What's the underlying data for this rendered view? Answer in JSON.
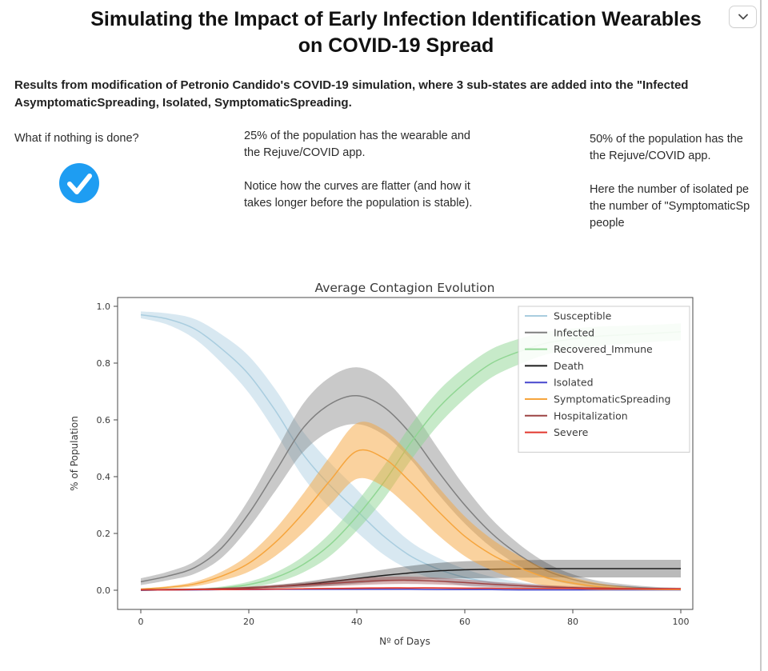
{
  "page": {
    "title_line1": "Simulating the Impact of Early Infection Identification Wearables",
    "title_line2": "on COVID-19 Spread",
    "subtitle_lines": [
      "Results from modification of Petronio Candido's COVID-19 simulation, where 3 sub-states are added into the \"Infected",
      "AsymptomaticSpreading, Isolated, SymptomaticSpreading."
    ]
  },
  "sections": {
    "left": {
      "heading": "What if nothing is done?"
    },
    "middle": {
      "lines": [
        "25% of the population has the wearable and",
        "the Rejuve/COVID app.",
        "",
        "Notice how the curves are flatter (and how it",
        "takes longer before the population is stable)."
      ]
    },
    "right": {
      "lines": [
        "50% of the population has the",
        "the Rejuve/COVID app.",
        "",
        "Here the number of isolated pe",
        "the number of \"SymptomaticSp",
        "people"
      ]
    }
  },
  "icons": {
    "check_circle_color": "#1e9df2",
    "chevron_color": "#4a4a4a"
  },
  "chart_data": {
    "type": "line",
    "title": "Average Contagion Evolution",
    "xlabel": "Nº of Days",
    "ylabel": "% of Population",
    "xlim": [
      0,
      100
    ],
    "ylim": [
      0.0,
      1.0
    ],
    "x_ticks": [
      0,
      20,
      40,
      60,
      80,
      100
    ],
    "y_ticks": [
      0.0,
      0.2,
      0.4,
      0.6,
      0.8,
      1.0
    ],
    "grid": false,
    "legend_position": "upper right",
    "x": [
      0,
      5,
      10,
      15,
      20,
      25,
      30,
      35,
      40,
      45,
      50,
      55,
      60,
      65,
      70,
      75,
      80,
      85,
      90,
      95,
      100
    ],
    "series": [
      {
        "name": "Susceptible",
        "color": "#a9cddf",
        "values": [
          0.97,
          0.955,
          0.92,
          0.85,
          0.76,
          0.63,
          0.48,
          0.37,
          0.28,
          0.19,
          0.12,
          0.075,
          0.045,
          0.027,
          0.016,
          0.01,
          0.006,
          0.004,
          0.003,
          0.002,
          0.002
        ],
        "band": [
          0.012,
          0.02,
          0.035,
          0.05,
          0.065,
          0.075,
          0.08,
          0.08,
          0.075,
          0.065,
          0.05,
          0.04,
          0.03,
          0.02,
          0.013,
          0.008,
          0.005,
          0.004,
          0.003,
          0.002,
          0.002
        ],
        "band_alpha": 0.45
      },
      {
        "name": "Infected",
        "color": "#7f7f7f",
        "values": [
          0.03,
          0.05,
          0.08,
          0.15,
          0.27,
          0.42,
          0.57,
          0.655,
          0.685,
          0.645,
          0.55,
          0.42,
          0.3,
          0.2,
          0.125,
          0.07,
          0.038,
          0.02,
          0.012,
          0.007,
          0.005
        ],
        "band": [
          0.012,
          0.015,
          0.022,
          0.035,
          0.05,
          0.068,
          0.085,
          0.095,
          0.1,
          0.098,
          0.09,
          0.08,
          0.065,
          0.05,
          0.038,
          0.028,
          0.018,
          0.012,
          0.008,
          0.005,
          0.004
        ],
        "band_alpha": 0.42
      },
      {
        "name": "Recovered_Immune",
        "color": "#90d693",
        "values": [
          0,
          0.001,
          0.003,
          0.008,
          0.02,
          0.045,
          0.09,
          0.16,
          0.26,
          0.38,
          0.52,
          0.64,
          0.73,
          0.8,
          0.84,
          0.87,
          0.885,
          0.895,
          0.9,
          0.905,
          0.91
        ],
        "band": [
          0,
          0.001,
          0.002,
          0.005,
          0.01,
          0.018,
          0.028,
          0.04,
          0.05,
          0.058,
          0.062,
          0.06,
          0.055,
          0.05,
          0.045,
          0.04,
          0.037,
          0.034,
          0.032,
          0.03,
          0.03
        ],
        "band_alpha": 0.5
      },
      {
        "name": "Death",
        "color": "#1c1c1c",
        "values": [
          0,
          0.001,
          0.002,
          0.004,
          0.008,
          0.013,
          0.02,
          0.03,
          0.041,
          0.052,
          0.061,
          0.068,
          0.072,
          0.074,
          0.075,
          0.076,
          0.076,
          0.076,
          0.076,
          0.076,
          0.076
        ],
        "band": [
          0,
          0.001,
          0.001,
          0.002,
          0.004,
          0.006,
          0.009,
          0.013,
          0.017,
          0.021,
          0.025,
          0.028,
          0.03,
          0.031,
          0.031,
          0.031,
          0.031,
          0.031,
          0.031,
          0.031,
          0.031
        ],
        "band_alpha": 0.3
      },
      {
        "name": "Isolated",
        "color": "#4646cd",
        "values": [
          0,
          0.001,
          0.001,
          0.002,
          0.002,
          0.003,
          0.003,
          0.003,
          0.003,
          0.003,
          0.003,
          0.002,
          0.002,
          0.002,
          0.001,
          0.001,
          0.001,
          0.001,
          0.001,
          0.001,
          0.001
        ],
        "band": [
          0,
          0.001,
          0.001,
          0.001,
          0.001,
          0.002,
          0.002,
          0.002,
          0.002,
          0.002,
          0.002,
          0.001,
          0.001,
          0.001,
          0.001,
          0.001,
          0.001,
          0.001,
          0.001,
          0.001,
          0.001
        ],
        "band_alpha": 0.35
      },
      {
        "name": "SymptomaticSpreading",
        "color": "#f6a53d",
        "values": [
          0.004,
          0.01,
          0.022,
          0.05,
          0.095,
          0.17,
          0.27,
          0.385,
          0.49,
          0.465,
          0.38,
          0.28,
          0.19,
          0.125,
          0.08,
          0.045,
          0.025,
          0.012,
          0.006,
          0.003,
          0.002
        ],
        "band": [
          0.002,
          0.004,
          0.008,
          0.016,
          0.03,
          0.048,
          0.068,
          0.085,
          0.098,
          0.1,
          0.095,
          0.085,
          0.07,
          0.055,
          0.042,
          0.03,
          0.02,
          0.012,
          0.006,
          0.003,
          0.002
        ],
        "band_alpha": 0.5
      },
      {
        "name": "Hospitalization",
        "color": "#9c4343",
        "values": [
          0.002,
          0.003,
          0.004,
          0.006,
          0.009,
          0.013,
          0.018,
          0.024,
          0.03,
          0.034,
          0.035,
          0.032,
          0.027,
          0.021,
          0.016,
          0.012,
          0.009,
          0.007,
          0.006,
          0.005,
          0.005
        ],
        "band": [
          0.001,
          0.001,
          0.002,
          0.003,
          0.004,
          0.006,
          0.008,
          0.01,
          0.012,
          0.013,
          0.013,
          0.012,
          0.011,
          0.009,
          0.008,
          0.006,
          0.005,
          0.004,
          0.003,
          0.003,
          0.003
        ],
        "band_alpha": 0.4
      },
      {
        "name": "Severe",
        "color": "#e2382e",
        "values": [
          0.001,
          0.001,
          0.002,
          0.002,
          0.003,
          0.004,
          0.005,
          0.006,
          0.007,
          0.008,
          0.008,
          0.008,
          0.007,
          0.007,
          0.006,
          0.006,
          0.006,
          0.005,
          0.005,
          0.005,
          0.005
        ],
        "band": [
          0.001,
          0.001,
          0.001,
          0.001,
          0.002,
          0.002,
          0.002,
          0.003,
          0.003,
          0.003,
          0.003,
          0.003,
          0.003,
          0.002,
          0.002,
          0.002,
          0.002,
          0.002,
          0.002,
          0.002,
          0.002
        ],
        "band_alpha": 0.35
      }
    ]
  }
}
